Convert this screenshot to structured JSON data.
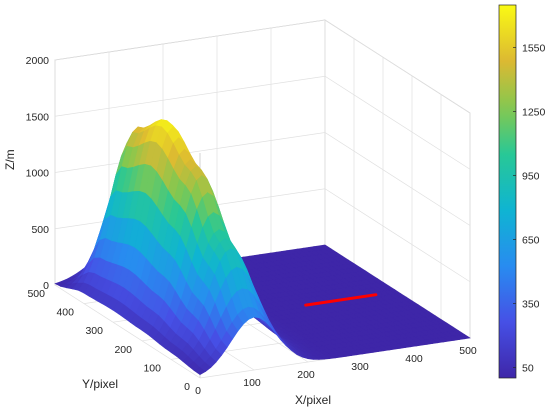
{
  "chart_data": {
    "type": "surface",
    "title": "",
    "xlabel": "X/pixel",
    "ylabel": "Y/pixel",
    "zlabel": "Z/m",
    "xlim": [
      0,
      500
    ],
    "ylim": [
      0,
      500
    ],
    "zlim": [
      0,
      2000
    ],
    "x_ticks": [
      "0",
      "100",
      "200",
      "300",
      "400",
      "500"
    ],
    "y_ticks": [
      "0",
      "100",
      "200",
      "300",
      "400",
      "500"
    ],
    "z_ticks": [
      "0",
      "500",
      "1000",
      "1500",
      "2000"
    ],
    "surface": {
      "description_peak_height": 1750,
      "ridge_center_x": 100,
      "ridge_width_x": 60,
      "ridge_profile_along_y": [
        {
          "y": 0,
          "z": 470
        },
        {
          "y": 100,
          "z": 1000
        },
        {
          "y": 200,
          "z": 1480
        },
        {
          "y": 300,
          "z": 1720
        },
        {
          "y": 400,
          "z": 1500
        },
        {
          "y": 500,
          "z": 200
        }
      ],
      "base_z": 0
    },
    "red_line": {
      "color": "#ff0000",
      "points": [
        {
          "x": 330,
          "y": 250,
          "z": 0
        },
        {
          "x": 460,
          "y": 250,
          "z": 0
        }
      ]
    },
    "colorbar": {
      "ticks": [
        "50",
        "350",
        "650",
        "950",
        "1250",
        "1550"
      ],
      "tick_values": [
        50,
        350,
        650,
        950,
        1250,
        1550
      ],
      "range": [
        0,
        1750
      ],
      "colormap": "parula"
    },
    "grid": true,
    "box": true
  }
}
